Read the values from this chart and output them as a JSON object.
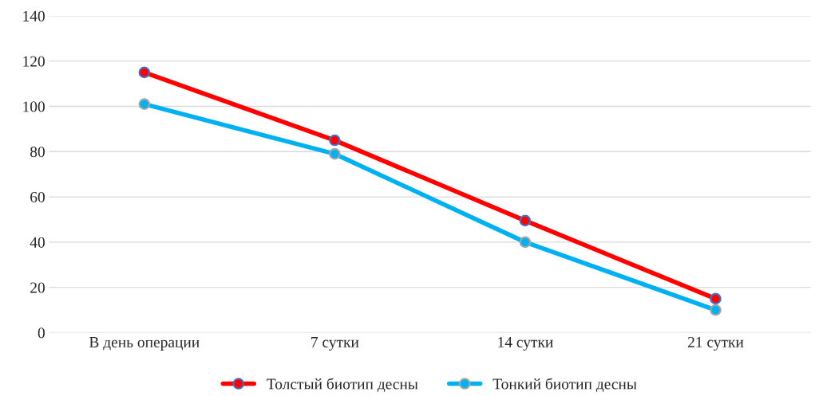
{
  "chart_data": {
    "type": "line",
    "categories": [
      "В день операции",
      "7 сутки",
      "14 сутки",
      "21 сутки"
    ],
    "series": [
      {
        "name": "Толстый биотип десны",
        "color": "#ff0000",
        "values": [
          115,
          85,
          49.5,
          15
        ]
      },
      {
        "name": "Тонкий биотип десны",
        "color": "#00b0f0",
        "values": [
          101,
          79,
          40,
          10
        ]
      }
    ],
    "ylim": [
      0,
      140
    ],
    "yticks": [
      0,
      20,
      40,
      60,
      80,
      100,
      120,
      140
    ],
    "grid": "y",
    "legend": "bottom",
    "marker": "circle",
    "line_style": "solid"
  }
}
